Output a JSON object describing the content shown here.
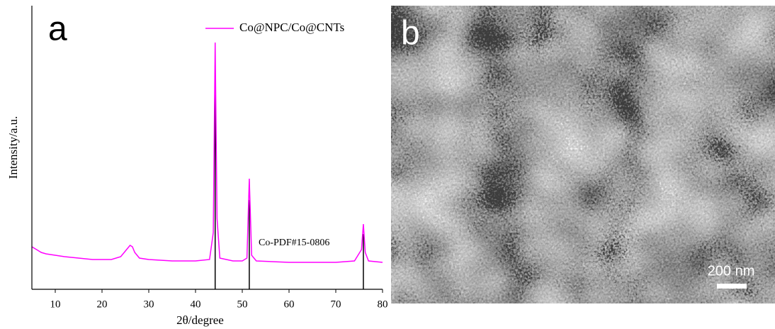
{
  "chart_data": {
    "type": "line",
    "panel_label": "a",
    "xlabel": "2θ/degree",
    "ylabel": "Intensity/a.u.",
    "xlim": [
      5,
      80
    ],
    "ylim": [
      0,
      100
    ],
    "xticks": [
      10,
      20,
      30,
      40,
      50,
      60,
      70,
      80
    ],
    "legend": "top-right",
    "series": [
      {
        "name": "Co@NPC/Co@CNTs",
        "color": "#ff00ff",
        "x": [
          5,
          6,
          7,
          8,
          10,
          12,
          15,
          18,
          20,
          22,
          24,
          25,
          26,
          26.5,
          27,
          28,
          30,
          35,
          40,
          43,
          43.8,
          44.2,
          44.6,
          45.2,
          48,
          50,
          51,
          51.5,
          52,
          53,
          60,
          65,
          70,
          74,
          75.5,
          75.9,
          76.3,
          77,
          80
        ],
        "values": [
          15,
          14,
          13,
          12.5,
          12,
          11.5,
          11,
          10.5,
          10.5,
          10.5,
          11.5,
          13.5,
          15.5,
          15,
          13,
          11,
          10.5,
          10,
          10,
          10.5,
          20,
          87,
          25,
          11,
          10,
          10,
          11,
          39,
          12,
          10,
          9.5,
          9.5,
          9.5,
          10,
          14,
          23,
          13,
          10,
          9.5
        ]
      }
    ],
    "reference": {
      "label": "Co-PDF#15-0806",
      "color": "#000000",
      "x": [
        44.2,
        51.5,
        75.9
      ],
      "values": [
        79,
        31.5,
        19.5
      ]
    }
  },
  "image": {
    "panel_label": "b",
    "scale_bar": "200 nm"
  }
}
